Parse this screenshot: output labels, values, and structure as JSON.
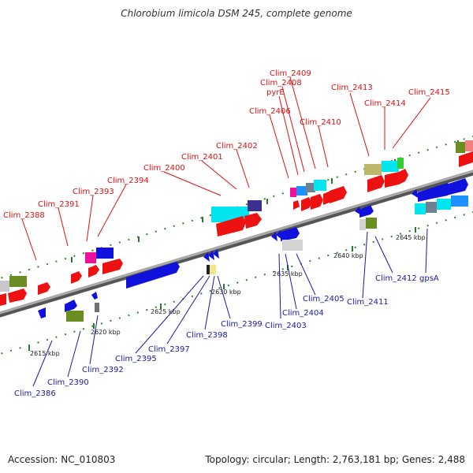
{
  "title": "Chlorobium limicola DSM 245, complete genome",
  "footer": {
    "accession": "Accession: NC_010803",
    "summary": "Topology: circular; Length: 2,763,181 bp; Genes: 2,488"
  },
  "scale_ticks": [
    "2615 kbp",
    "2620 kbp",
    "2625 kbp",
    "2630 kbp",
    "2635 kbp",
    "2640 kbp",
    "2645 kbp"
  ],
  "genes_forward": [
    "Clim_2388",
    "Clim_2391",
    "Clim_2393",
    "Clim_2394",
    "Clim_2400",
    "Clim_2401",
    "Clim_2402",
    "Clim_2406",
    "pyrE",
    "Clim_2408",
    "Clim_2409",
    "Clim_2410",
    "Clim_2413",
    "Clim_2414",
    "Clim_2415"
  ],
  "genes_reverse": [
    "Clim_2386",
    "Clim_2390",
    "Clim_2392",
    "Clim_2395",
    "Clim_2397",
    "Clim_2398",
    "Clim_2399",
    "Clim_2403",
    "Clim_2404",
    "Clim_2405",
    "Clim_2411",
    "Clim_2412",
    "gpsA"
  ],
  "colors": {
    "forward_gene": "#ee1111",
    "reverse_gene": "#1111dd",
    "forward_label": "#e01010",
    "reverse_label": "#1a1aa8",
    "backbone": "#888888",
    "ticks": "#228822"
  }
}
